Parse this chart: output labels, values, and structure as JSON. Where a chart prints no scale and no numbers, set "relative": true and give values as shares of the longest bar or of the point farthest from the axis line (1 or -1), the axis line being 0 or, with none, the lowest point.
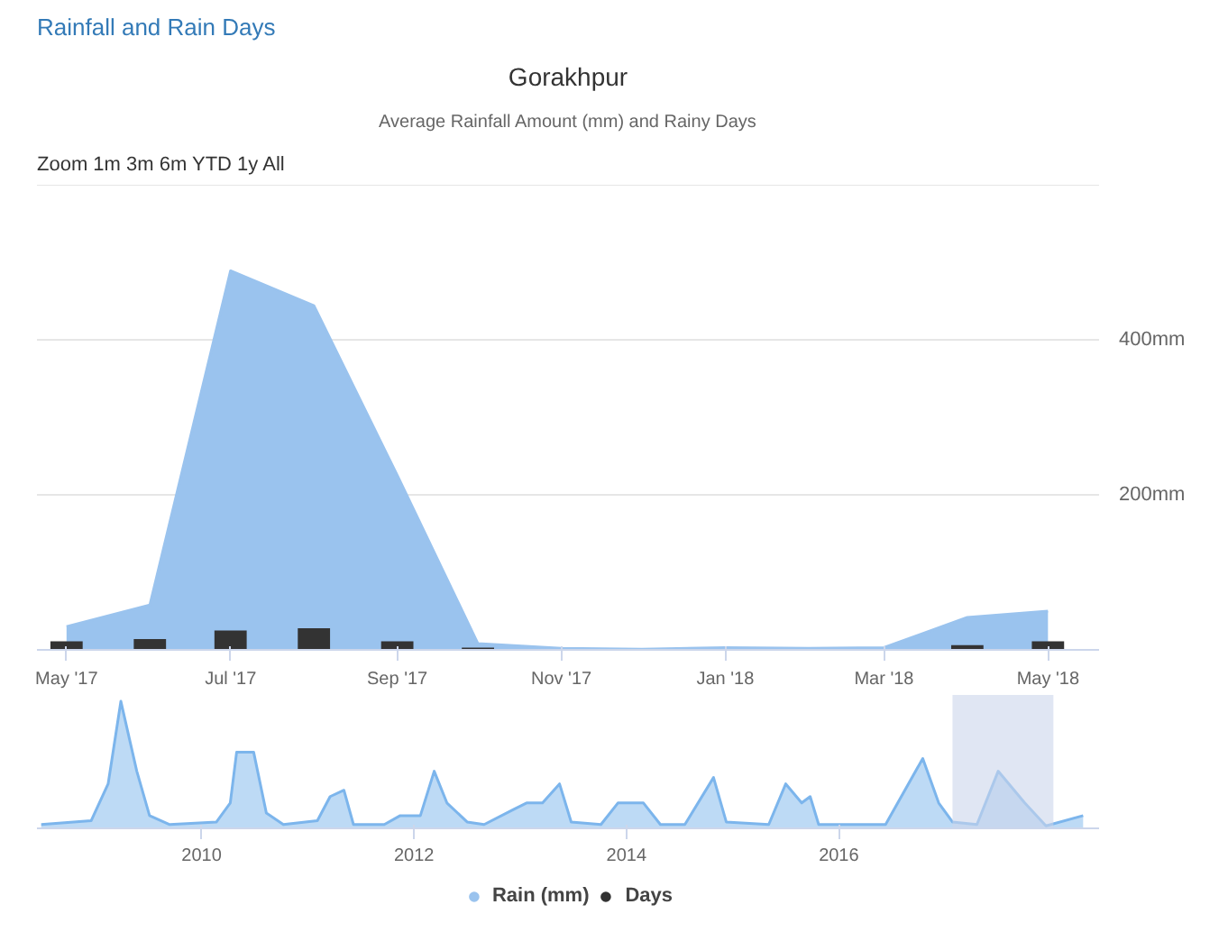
{
  "chart_data": [
    {
      "type": "area",
      "title": "Rainfall and Rain Days",
      "subtitle": "Gorakhpur",
      "annotations": [
        "Average Rainfall Amount (mm) and Rainy Days",
        "Zoom",
        "1m",
        "3m",
        "6m",
        "YTD",
        "1y",
        "All"
      ],
      "x": [
        "2017-05",
        "2017-06",
        "2017-07",
        "2017-08",
        "2017-09",
        "2017-10",
        "2017-11",
        "2017-12",
        "2018-01",
        "2018-02",
        "2018-03",
        "2018-04",
        "2018-05"
      ],
      "series": [
        {
          "name": "Rain (mm)",
          "color": "#9ac3ee",
          "values": [
            30,
            58,
            489,
            444,
            225,
            8,
            2,
            1,
            3,
            2,
            3,
            42,
            50
          ]
        },
        {
          "name": "Days",
          "type": "bar",
          "color": "#333333",
          "values": [
            11,
            14,
            25,
            28,
            11,
            3,
            0,
            0,
            0,
            0,
            0,
            6,
            11
          ]
        }
      ],
      "xlim": [
        "2017-04-20",
        "2018-05-20"
      ],
      "xticks": [
        {
          "value": "2017-05",
          "label": "May '17"
        },
        {
          "value": "2017-07",
          "label": "Jul '17"
        },
        {
          "value": "2017-09",
          "label": "Sep '17"
        },
        {
          "value": "2017-11",
          "label": "Nov '17"
        },
        {
          "value": "2018-01",
          "label": "Jan '18"
        },
        {
          "value": "2018-03",
          "label": "Mar '18"
        },
        {
          "value": "2018-05",
          "label": "May '18"
        }
      ],
      "ylim": [
        0,
        600
      ],
      "yticks": [
        {
          "value": 0,
          "label": null
        },
        {
          "value": 200,
          "label": "200mm"
        },
        {
          "value": 400,
          "label": "400mm"
        }
      ],
      "grid": "y",
      "legend": "bottom"
    },
    {
      "type": "area",
      "relative": true,
      "tick_labels": "x",
      "x": [
        2008.49,
        2008.96,
        2009.12,
        2009.24,
        2009.39,
        2009.51,
        2009.7,
        2010.14,
        2010.27,
        2010.33,
        2010.49,
        2010.61,
        2010.77,
        2011.09,
        2011.21,
        2011.34,
        2011.43,
        2011.72,
        2011.87,
        2012.06,
        2012.19,
        2012.31,
        2012.5,
        2012.66,
        2012.94,
        2013.06,
        2013.21,
        2013.37,
        2013.48,
        2013.76,
        2013.92,
        2014.16,
        2014.32,
        2014.55,
        2014.82,
        2014.94,
        2015.34,
        2015.5,
        2015.65,
        2015.73,
        2015.81,
        2016.44,
        2016.79,
        2016.94,
        2017.07,
        2017.3,
        2017.5,
        2017.75,
        2017.95,
        2018.3
      ],
      "series": [
        {
          "color": "#7cb5ec",
          "values": [
            0.03,
            0.06,
            0.35,
            1.0,
            0.45,
            0.1,
            0.03,
            0.05,
            0.2,
            0.6,
            0.6,
            0.12,
            0.03,
            0.06,
            0.25,
            0.3,
            0.03,
            0.03,
            0.1,
            0.1,
            0.45,
            0.2,
            0.05,
            0.03,
            0.15,
            0.2,
            0.2,
            0.35,
            0.05,
            0.03,
            0.2,
            0.2,
            0.03,
            0.03,
            0.4,
            0.05,
            0.03,
            0.35,
            0.2,
            0.25,
            0.03,
            0.03,
            0.55,
            0.2,
            0.05,
            0.03,
            0.45,
            0.2,
            0.02,
            0.1
          ]
        }
      ],
      "xlim": [
        2008.45,
        2018.45
      ],
      "xticks": [
        2010,
        2012,
        2014,
        2016
      ],
      "bands": [
        {
          "axis": "x",
          "from": 2017.07,
          "to": 2018.02,
          "color": "#ccd6eb"
        }
      ]
    }
  ]
}
